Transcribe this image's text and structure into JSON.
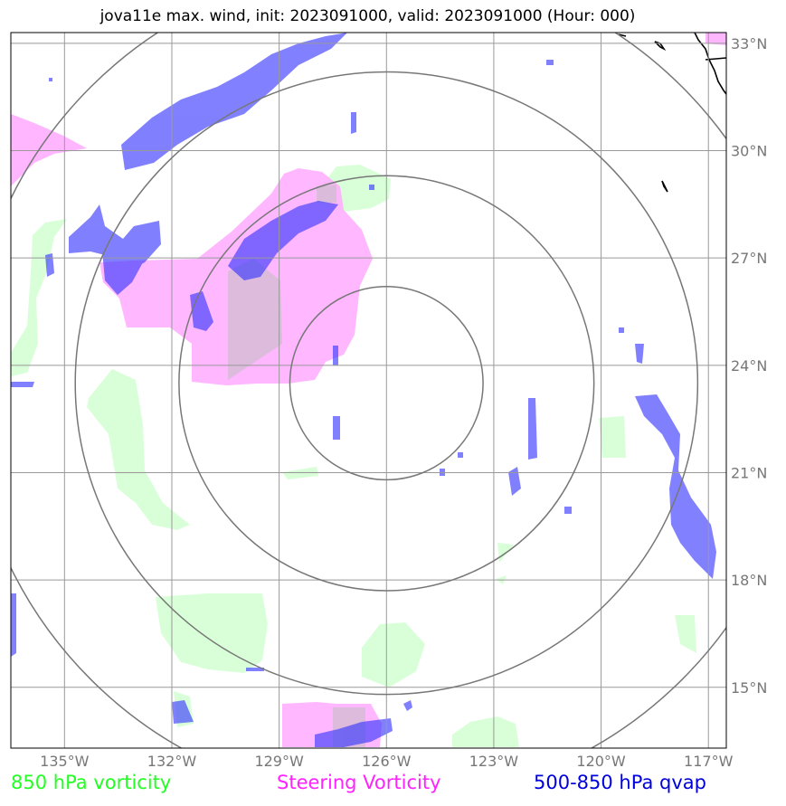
{
  "title": "jova11e max. wind, init: 2023091000, valid: 2023091000 (Hour: 000)",
  "map": {
    "lon_range": [
      -136.5,
      -116.5
    ],
    "lat_range": [
      13.3,
      33.3
    ],
    "lon_ticks": [
      -135,
      -132,
      -129,
      -126,
      -123,
      -120,
      -117
    ],
    "lon_tick_labels": [
      "135°W",
      "132°W",
      "129°W",
      "126°W",
      "123°W",
      "120°W",
      "117°W"
    ],
    "lat_ticks": [
      15,
      18,
      21,
      24,
      27,
      30,
      33
    ],
    "lat_tick_labels": [
      "15°N",
      "18°N",
      "21°N",
      "24°N",
      "27°N",
      "30°N",
      "33°N"
    ],
    "center": {
      "lon": -126.0,
      "lat": 23.5
    },
    "range_rings_deg": [
      2.7,
      5.8,
      8.7,
      11.7
    ],
    "colors": {
      "vort850": "#ccffcc",
      "steering": "#ffaaff",
      "qvap": "#3333ff",
      "gridline": "#999999",
      "ring": "#777777",
      "coast": "#000000"
    }
  },
  "legend": {
    "vort850": {
      "label": "850 hPa vorticity",
      "color": "#22ff22"
    },
    "steering": {
      "label": "Steering Vorticity",
      "color": "#ff22ff"
    },
    "qvap": {
      "label": "500-850 hPa qvap",
      "color": "#0000dd"
    }
  }
}
